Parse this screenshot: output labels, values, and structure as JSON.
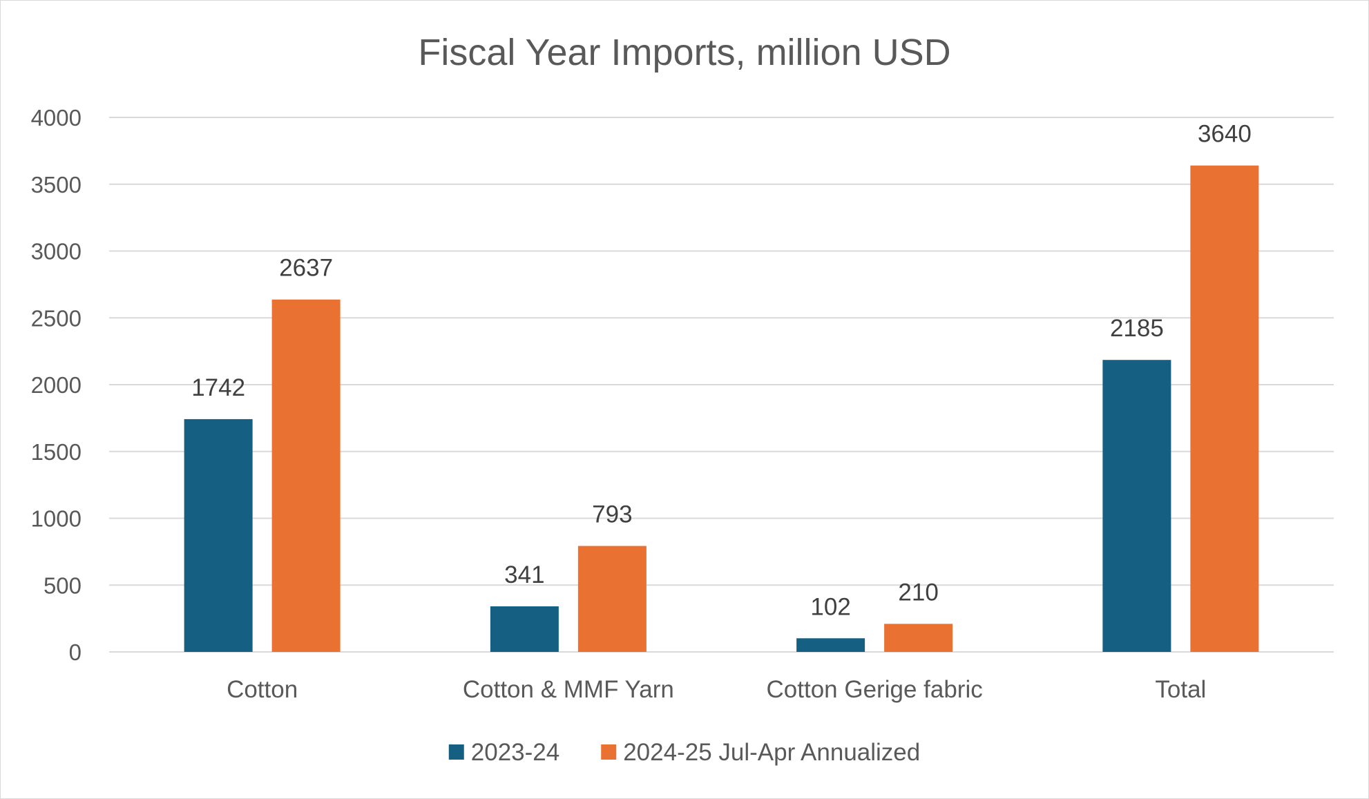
{
  "chart_data": {
    "type": "bar",
    "title": "Fiscal Year Imports, million USD",
    "xlabel": "",
    "ylabel": "",
    "categories": [
      "Cotton",
      "Cotton & MMF Yarn",
      "Cotton Gerige fabric",
      "Total"
    ],
    "series": [
      {
        "name": "2023-24",
        "values": [
          1742,
          341,
          102,
          2185
        ],
        "color": "#156082"
      },
      {
        "name": "2024-25 Jul-Apr Annualized",
        "values": [
          2637,
          793,
          210,
          3640
        ],
        "color": "#E97132"
      }
    ],
    "ylim": [
      0,
      4000
    ],
    "yticks": [
      0,
      500,
      1000,
      1500,
      2000,
      2500,
      3000,
      3500,
      4000
    ],
    "grid": true,
    "data_labels": true,
    "legend_position": "bottom"
  }
}
